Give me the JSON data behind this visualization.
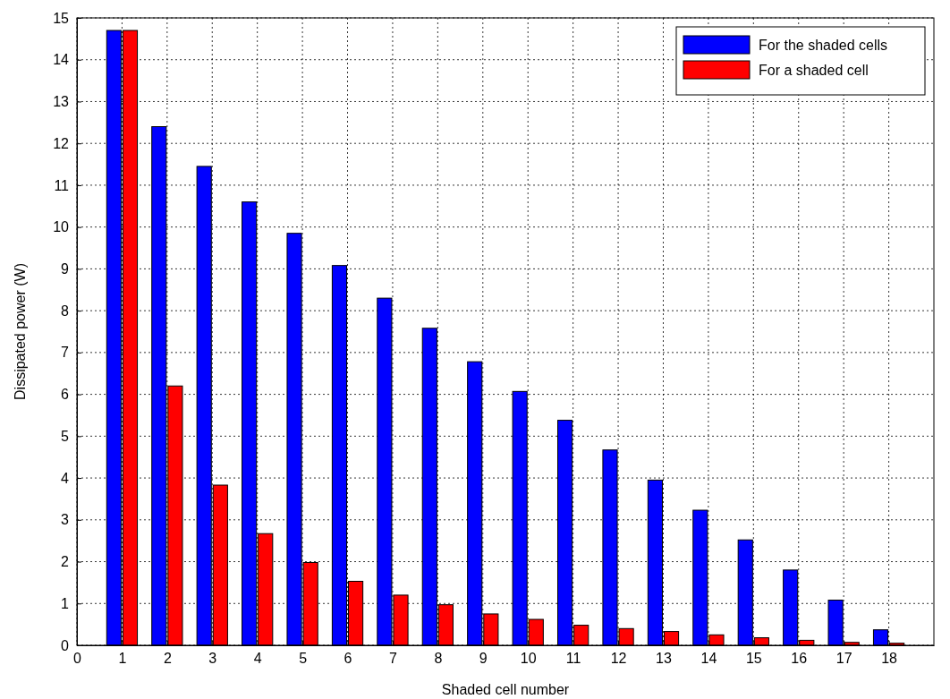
{
  "chart_data": {
    "type": "bar",
    "xlabel": "Shaded cell number",
    "ylabel": "Dissipated power (W)",
    "x": [
      1,
      2,
      3,
      4,
      5,
      6,
      7,
      8,
      9,
      10,
      11,
      12,
      13,
      14,
      15,
      16,
      17,
      18
    ],
    "series": [
      {
        "name": "For the shaded cells",
        "color": "#0000ff",
        "values": [
          14.7,
          12.4,
          11.45,
          10.6,
          9.85,
          9.08,
          8.3,
          7.58,
          6.78,
          6.07,
          5.38,
          4.67,
          3.95,
          3.23,
          2.52,
          1.8,
          1.08,
          0.37
        ]
      },
      {
        "name": "For a shaded cell",
        "color": "#ff0000",
        "values": [
          14.7,
          6.2,
          3.83,
          2.67,
          1.98,
          1.53,
          1.2,
          0.97,
          0.75,
          0.62,
          0.48,
          0.4,
          0.33,
          0.25,
          0.18,
          0.12,
          0.07,
          0.05
        ]
      }
    ],
    "xlim": [
      0,
      19
    ],
    "xticks": [
      0,
      1,
      2,
      3,
      4,
      5,
      6,
      7,
      8,
      9,
      10,
      11,
      12,
      13,
      14,
      15,
      16,
      17,
      18
    ],
    "ylim": [
      0,
      15
    ],
    "yticks": [
      0,
      1,
      2,
      3,
      4,
      5,
      6,
      7,
      8,
      9,
      10,
      11,
      12,
      13,
      14,
      15
    ],
    "grid": true,
    "legend": "top right"
  }
}
